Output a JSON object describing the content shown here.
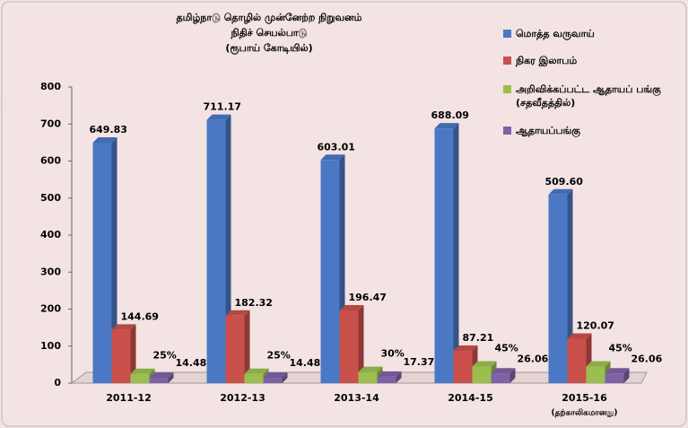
{
  "chart_data": {
    "type": "bar3d",
    "title": "தமிழ்நாடு தொழில் முன்னேற்ற நிறுவனம்",
    "subtitle": "நிதிச் செயல்பாடு",
    "unit": "(ரூபாய் கோடியில்)",
    "categories": [
      "2011-12",
      "2012-13",
      "2013-14",
      "2014-15",
      "2015-16"
    ],
    "category_note": "(தற்காலிகமானது)",
    "series": [
      {
        "name": "மொத்த வருவாய்",
        "color": "#4a78c4",
        "values": [
          649.83,
          711.17,
          603.01,
          688.09,
          509.6
        ],
        "value_labels": [
          "649.83",
          "711.17",
          "603.01",
          "688.09",
          "509.60"
        ]
      },
      {
        "name": "நிகர இலாபம்",
        "color": "#c9504b",
        "values": [
          144.69,
          182.32,
          196.47,
          87.21,
          120.07
        ]
      },
      {
        "name": "அறிவிக்கப்பட்ட ஆதாயப் பங்கு (சதவீதத்தில்)",
        "color": "#9bbf4f",
        "values": [
          25,
          25,
          30,
          45,
          45
        ],
        "value_labels": [
          "25%",
          "25%",
          "30%",
          "45%",
          "45%"
        ]
      },
      {
        "name": "ஆதாயப்பங்கு",
        "color": "#7f62a6",
        "values": [
          14.48,
          14.48,
          17.37,
          26.06,
          26.06
        ]
      }
    ],
    "ylim": [
      0,
      800
    ],
    "yticks": [
      0,
      100,
      200,
      300,
      400,
      500,
      600,
      700,
      800
    ]
  }
}
